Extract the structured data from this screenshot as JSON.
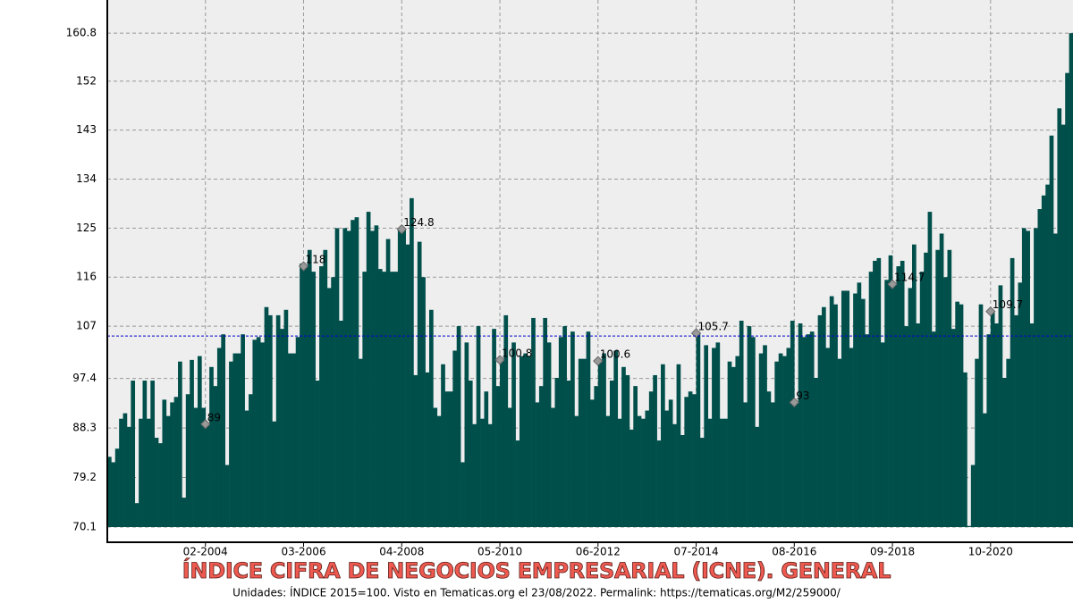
{
  "chart_data": {
    "type": "bar",
    "title": "ÍNDICE CIFRA DE NEGOCIOS EMPRESARIAL (ICNE). GENERAL",
    "subtitle": "Unidades: ÍNDICE 2015=100. Visto en Tematicas.org el 23/08/2022. Permalink: https://tematicas.org/M2/259000/",
    "color": "#004f4b",
    "ylim": [
      70.1,
      166.9
    ],
    "yticks": [
      70.1,
      79.2,
      88.3,
      97.4,
      107,
      116,
      125,
      134,
      143,
      152,
      160.8
    ],
    "grid": true,
    "reference_line": {
      "value": 105.2,
      "color": "#0000cc"
    },
    "categories": [
      null,
      null,
      null,
      null,
      null,
      null,
      null,
      null,
      null,
      null,
      null,
      null,
      null,
      null,
      null,
      null,
      null,
      null,
      null,
      null,
      null,
      null,
      null,
      null,
      null,
      "02-2004",
      null,
      null,
      null,
      null,
      null,
      null,
      null,
      null,
      null,
      null,
      null,
      null,
      null,
      null,
      null,
      null,
      null,
      null,
      null,
      null,
      null,
      null,
      null,
      null,
      "03-2006",
      null,
      null,
      null,
      null,
      null,
      null,
      null,
      null,
      null,
      null,
      null,
      null,
      null,
      null,
      null,
      null,
      null,
      null,
      null,
      null,
      null,
      null,
      null,
      null,
      "04-2008",
      null,
      null,
      null,
      null,
      null,
      null,
      null,
      null,
      null,
      null,
      null,
      null,
      null,
      null,
      null,
      null,
      null,
      null,
      null,
      null,
      null,
      null,
      null,
      null,
      "05-2010",
      null,
      null,
      null,
      null,
      null,
      null,
      null,
      null,
      null,
      null,
      null,
      null,
      null,
      null,
      null,
      null,
      null,
      null,
      null,
      null,
      null,
      null,
      null,
      null,
      "06-2012",
      null,
      null,
      null,
      null,
      null,
      null,
      null,
      null,
      null,
      null,
      null,
      null,
      null,
      null,
      null,
      null,
      null,
      null,
      null,
      null,
      null,
      null,
      null,
      null,
      "07-2014",
      null,
      null,
      null,
      null,
      null,
      null,
      null,
      null,
      null,
      null,
      null,
      null,
      null,
      null,
      null,
      null,
      null,
      null,
      null,
      null,
      null,
      null,
      null,
      null,
      "08-2016",
      null,
      null,
      null,
      null,
      null,
      null,
      null,
      null,
      null,
      null,
      null,
      null,
      null,
      null,
      null,
      null,
      null,
      null,
      null,
      null,
      null,
      null,
      null,
      null,
      "09-2018",
      null,
      null,
      null,
      null,
      null,
      null,
      null,
      null,
      null,
      null,
      null,
      null,
      null,
      null,
      null,
      null,
      null,
      null,
      null,
      null,
      null,
      null,
      null,
      null,
      "10-2020",
      null,
      null,
      null,
      null,
      null,
      null,
      null,
      null,
      null,
      null,
      null,
      null,
      null,
      null,
      null,
      null,
      null,
      null,
      null,
      null
    ],
    "values": [
      83.0,
      82.0,
      84.5,
      90.0,
      91.0,
      88.5,
      97.0,
      74.5,
      90.0,
      97.0,
      90.0,
      97.0,
      86.5,
      85.5,
      93.5,
      90.5,
      93.0,
      94.0,
      100.5,
      75.5,
      94.5,
      100.8,
      92.0,
      101.5,
      92.0,
      89,
      99.5,
      96.0,
      103.0,
      105.5,
      81.5,
      100.5,
      102.0,
      102.0,
      105.5,
      91.5,
      94.5,
      104.5,
      105.0,
      104.0,
      110.5,
      109.0,
      89.5,
      109.0,
      106.5,
      110.0,
      102.0,
      102.0,
      105.0,
      118.5,
      118.0,
      121.0,
      117.0,
      97.0,
      118.0,
      121.0,
      114.0,
      116.0,
      125.0,
      108.0,
      125.0,
      124.5,
      126.5,
      127.0,
      101.0,
      117.0,
      128.0,
      124.5,
      125.5,
      117.5,
      117.0,
      123.0,
      117.0,
      117.0,
      125.0,
      124.8,
      122.0,
      130.5,
      98.0,
      122.5,
      116.0,
      98.5,
      110.0,
      92.0,
      90.5,
      100.0,
      95.0,
      95.0,
      102.5,
      107.0,
      82.0,
      104.0,
      97.0,
      89.0,
      107.0,
      90.0,
      95.0,
      89.0,
      106.5,
      96.0,
      100.8,
      109.0,
      92.0,
      104.0,
      86.0,
      101.5,
      102.0,
      101.5,
      108.5,
      93.0,
      96.0,
      108.5,
      104.0,
      92.0,
      97.5,
      105.0,
      107.0,
      97.0,
      106.0,
      90.5,
      101.0,
      101.0,
      106.0,
      93.5,
      96.0,
      100.6,
      102.0,
      90.5,
      97.0,
      102.5,
      90.0,
      99.5,
      98.0,
      88.0,
      96.0,
      90.5,
      90.0,
      91.5,
      95.0,
      98.0,
      86.0,
      100.0,
      91.5,
      93.5,
      89.0,
      100.0,
      87.0,
      94.0,
      95.0,
      94.5,
      105.7,
      86.5,
      103.5,
      90.0,
      103.0,
      104.0,
      90.0,
      90.0,
      100.5,
      99.5,
      101.5,
      108.0,
      93.0,
      107.0,
      105.0,
      88.5,
      102.0,
      103.5,
      95.0,
      93.0,
      100.5,
      102.0,
      101.5,
      103.0,
      108.0,
      93,
      107.5,
      105.0,
      105.5,
      106.0,
      97.5,
      109.0,
      110.5,
      103.0,
      112.5,
      111.0,
      101.0,
      113.5,
      113.5,
      103.0,
      113.0,
      115.0,
      112.0,
      105.5,
      117.0,
      119.0,
      119.5,
      104.0,
      115.5,
      120.0,
      114.7,
      118.0,
      119.0,
      107.0,
      114.0,
      122.0,
      107.5,
      117.0,
      120.5,
      128.0,
      106.0,
      121.0,
      124.0,
      116.0,
      121.0,
      106.5,
      111.5,
      111.0,
      98.5,
      70.3,
      81.5,
      101.0,
      111.0,
      91.0,
      105.5,
      109.7,
      107.5,
      114.5,
      97.5,
      101.0,
      119.5,
      109.0,
      115.0,
      125.0,
      124.5,
      107.5,
      125.0,
      128.5,
      131.0,
      133.0,
      142.0,
      124.0,
      147.0,
      144.0,
      153.5,
      160.8
    ]
  }
}
